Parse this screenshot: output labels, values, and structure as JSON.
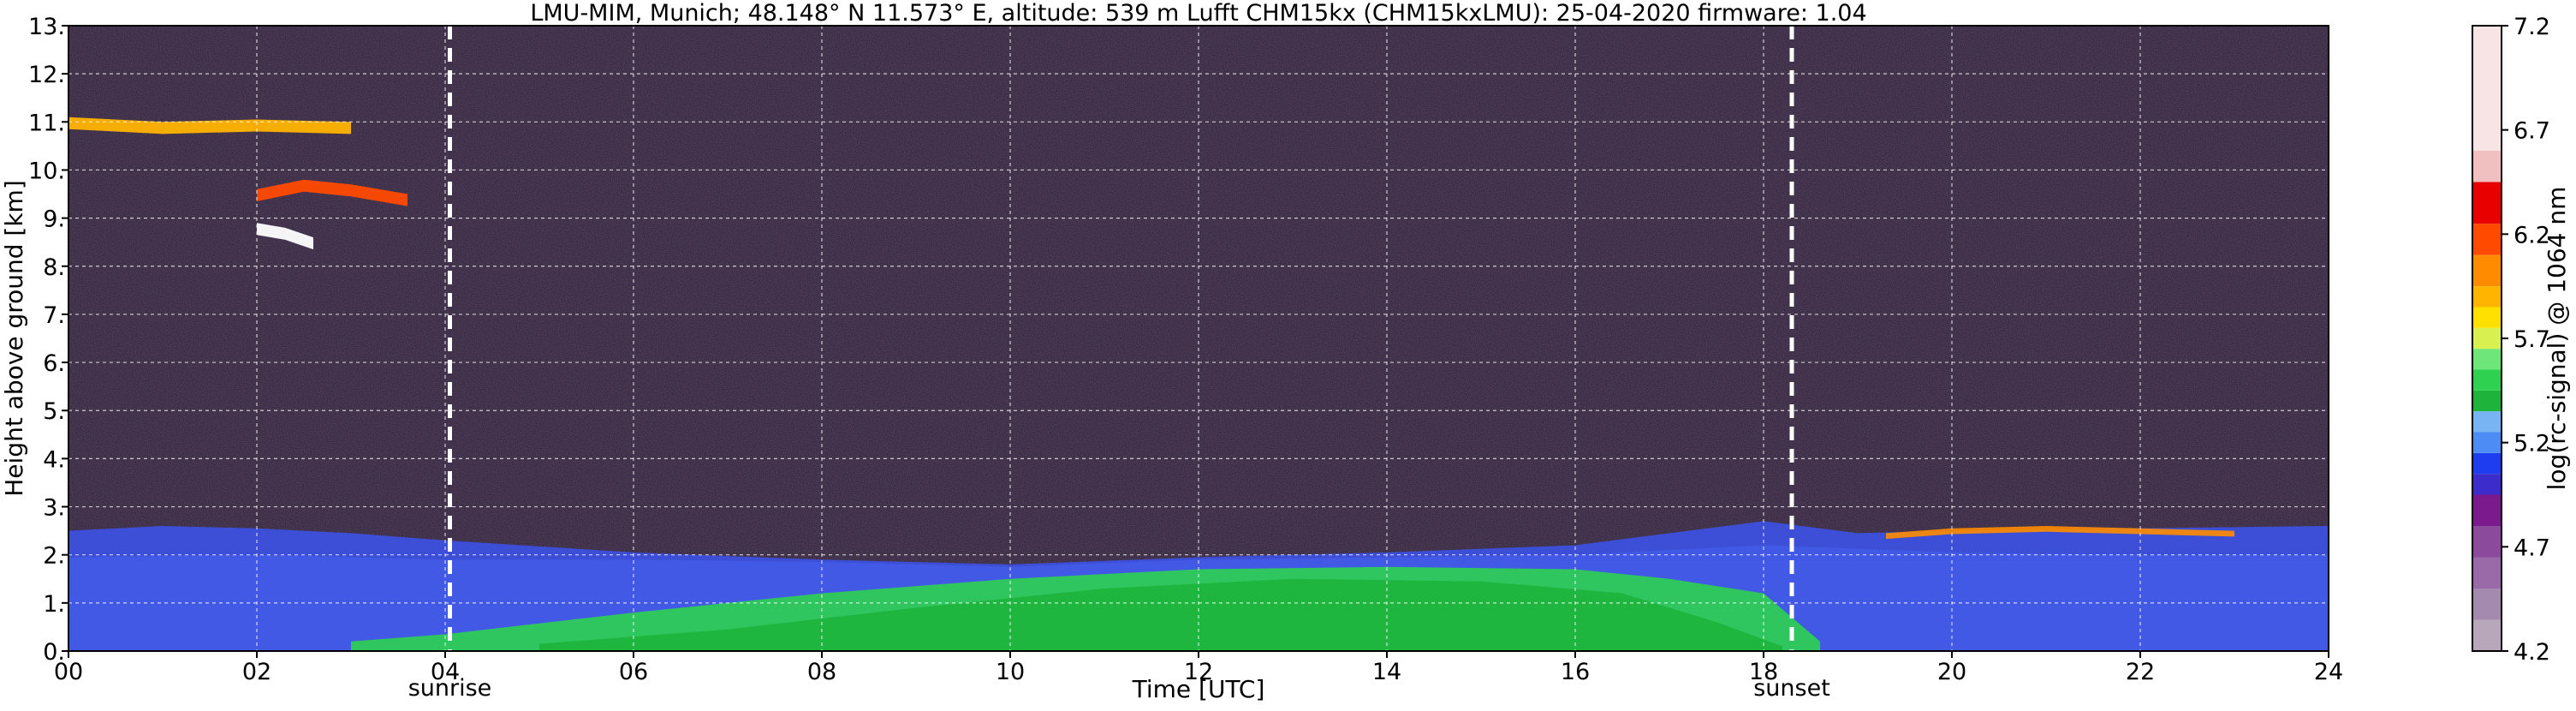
{
  "chart_data": {
    "type": "heatmap",
    "title": "LMU-MIM, Munich; 48.148° N 11.573° E, altitude: 539 m    Lufft CHM15kx (CHM15kxLMU): 25-04-2020    firmware: 1.04",
    "xlabel": "Time [UTC]",
    "ylabel": "Height above ground [km]",
    "colorbar_label": "log(rc-signal) @ 1064 nm",
    "xlim": [
      0,
      24
    ],
    "ylim": [
      0,
      13
    ],
    "x_ticks": [
      0,
      2,
      4,
      6,
      8,
      10,
      12,
      14,
      16,
      18,
      20,
      22,
      24
    ],
    "x_tick_labels": [
      "00",
      "02",
      "04",
      "06",
      "08",
      "10",
      "12",
      "14",
      "16",
      "18",
      "20",
      "22",
      "24"
    ],
    "y_ticks": [
      0,
      1,
      2,
      3,
      4,
      5,
      6,
      7,
      8,
      9,
      10,
      11,
      12,
      13
    ],
    "y_tick_labels": [
      "0.",
      "1.",
      "2.",
      "3.",
      "4.",
      "5.",
      "6.",
      "7.",
      "8.",
      "9.",
      "10.",
      "11.",
      "12.",
      "13."
    ],
    "colorbar_range": [
      4.2,
      7.2
    ],
    "colorbar_ticks": [
      4.2,
      4.7,
      5.2,
      5.7,
      6.2,
      6.7,
      7.2
    ],
    "colorbar_tick_labels": [
      "4.2",
      "4.7",
      "5.2",
      "5.7",
      "6.2",
      "6.7",
      "7.2"
    ],
    "grid": true,
    "annotations": [
      {
        "label": "sunrise",
        "x": 4.05
      },
      {
        "label": "sunset",
        "x": 18.3
      }
    ],
    "colorscale": [
      {
        "value": 4.2,
        "color": "#b8a6bb"
      },
      {
        "value": 4.35,
        "color": "#a58ab0"
      },
      {
        "value": 4.5,
        "color": "#9a6aa8"
      },
      {
        "value": 4.65,
        "color": "#8c4a9c"
      },
      {
        "value": 4.8,
        "color": "#7a1a8c"
      },
      {
        "value": 4.95,
        "color": "#3c2ccc"
      },
      {
        "value": 5.05,
        "color": "#1e3cf0"
      },
      {
        "value": 5.15,
        "color": "#4c8cf4"
      },
      {
        "value": 5.25,
        "color": "#78b4f4"
      },
      {
        "value": 5.35,
        "color": "#1eb43c"
      },
      {
        "value": 5.45,
        "color": "#2ed250"
      },
      {
        "value": 5.55,
        "color": "#6ee67a"
      },
      {
        "value": 5.65,
        "color": "#d8f050"
      },
      {
        "value": 5.75,
        "color": "#ffe000"
      },
      {
        "value": 5.85,
        "color": "#ffb400"
      },
      {
        "value": 5.95,
        "color": "#ff8c00"
      },
      {
        "value": 6.1,
        "color": "#ff4a00"
      },
      {
        "value": 6.25,
        "color": "#e80000"
      },
      {
        "value": 6.45,
        "color": "#f0c0c0"
      },
      {
        "value": 6.6,
        "color": "#f8e4e4"
      },
      {
        "value": 7.2,
        "color": "#ffffff"
      }
    ],
    "background_color": "#2a1b33",
    "layers": [
      {
        "name": "lower-aerosol",
        "color": "#7ea6f0",
        "top": [
          [
            0,
            1.95
          ],
          [
            2,
            2.0
          ],
          [
            4,
            1.9
          ],
          [
            6,
            1.9
          ],
          [
            8,
            1.85
          ],
          [
            10,
            1.75
          ],
          [
            12,
            1.9
          ],
          [
            14,
            1.95
          ],
          [
            16,
            2.0
          ],
          [
            18,
            2.2
          ],
          [
            20,
            2.05
          ],
          [
            22,
            2.0
          ],
          [
            24,
            2.0
          ]
        ]
      },
      {
        "name": "residual-layer",
        "color": "#3c52e6",
        "top": [
          [
            0,
            2.5
          ],
          [
            1,
            2.6
          ],
          [
            2,
            2.55
          ],
          [
            3,
            2.45
          ],
          [
            4,
            2.3
          ],
          [
            6,
            2.05
          ],
          [
            8,
            1.9
          ],
          [
            10,
            1.8
          ],
          [
            12,
            1.95
          ],
          [
            14,
            2.05
          ],
          [
            16,
            2.2
          ],
          [
            18,
            2.7
          ],
          [
            19,
            2.45
          ],
          [
            20,
            2.5
          ],
          [
            22,
            2.55
          ],
          [
            24,
            2.6
          ]
        ]
      },
      {
        "name": "mixed-layer",
        "color": "#2ed250",
        "top": [
          [
            3,
            0.2
          ],
          [
            4,
            0.35
          ],
          [
            6,
            0.8
          ],
          [
            8,
            1.2
          ],
          [
            10,
            1.5
          ],
          [
            12,
            1.7
          ],
          [
            14,
            1.75
          ],
          [
            16,
            1.7
          ],
          [
            17,
            1.5
          ],
          [
            18,
            1.2
          ],
          [
            18.6,
            0.2
          ]
        ]
      },
      {
        "name": "mixed-layer-core",
        "color": "#1eb43c",
        "top": [
          [
            5,
            0.15
          ],
          [
            7,
            0.45
          ],
          [
            9,
            0.9
          ],
          [
            11,
            1.3
          ],
          [
            13,
            1.5
          ],
          [
            15,
            1.45
          ],
          [
            16.5,
            1.2
          ],
          [
            17.5,
            0.6
          ],
          [
            18.2,
            0.1
          ]
        ]
      },
      {
        "name": "low-cloud-band",
        "color": "#ff8c00",
        "top": [
          [
            19.3,
            2.45
          ],
          [
            20,
            2.55
          ],
          [
            21,
            2.6
          ],
          [
            22,
            2.55
          ],
          [
            23,
            2.5
          ]
        ]
      },
      {
        "name": "high-cirrus-1",
        "color": "#ffb400",
        "top": [
          [
            0,
            11.1
          ],
          [
            1,
            11.0
          ],
          [
            2,
            11.05
          ],
          [
            3,
            11.0
          ]
        ]
      },
      {
        "name": "high-cirrus-2",
        "color": "#ff4a00",
        "top": [
          [
            2,
            9.6
          ],
          [
            2.5,
            9.8
          ],
          [
            3,
            9.7
          ],
          [
            3.6,
            9.5
          ]
        ]
      },
      {
        "name": "high-cirrus-3",
        "color": "#ffffff",
        "top": [
          [
            2,
            8.9
          ],
          [
            2.3,
            8.8
          ],
          [
            2.6,
            8.6
          ]
        ]
      }
    ]
  }
}
